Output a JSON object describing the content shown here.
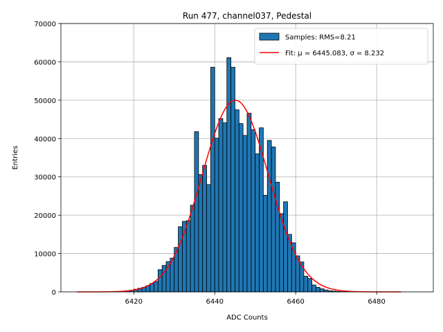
{
  "chart_data": {
    "type": "bar",
    "title": "Run 477, channel037, Pedestal",
    "xlabel": "ADC Counts",
    "ylabel": "Entries",
    "xlim": [
      6402,
      6494
    ],
    "ylim": [
      0,
      70000
    ],
    "xticks": [
      6420,
      6440,
      6460,
      6480
    ],
    "yticks": [
      0,
      10000,
      20000,
      30000,
      40000,
      50000,
      60000,
      70000
    ],
    "grid": true,
    "legend_position": "top-right",
    "bin_width": 1,
    "histogram": {
      "name": "Samples: RMS=8.21",
      "color": "#1f77b4",
      "bins": [
        6418,
        6419,
        6420,
        6421,
        6422,
        6423,
        6424,
        6425,
        6426,
        6427,
        6428,
        6429,
        6430,
        6431,
        6432,
        6433,
        6434,
        6435,
        6436,
        6437,
        6438,
        6439,
        6440,
        6441,
        6442,
        6443,
        6444,
        6445,
        6446,
        6447,
        6448,
        6449,
        6450,
        6451,
        6452,
        6453,
        6454,
        6455,
        6456,
        6457,
        6458,
        6459,
        6460,
        6461,
        6462,
        6463,
        6464,
        6465,
        6466,
        6467,
        6468,
        6469,
        6470,
        6471,
        6472
      ],
      "values": [
        300,
        450,
        700,
        950,
        1200,
        1600,
        2200,
        2700,
        5800,
        6900,
        7900,
        8800,
        11600,
        17000,
        18400,
        18600,
        22600,
        41800,
        30600,
        33000,
        28000,
        58600,
        40100,
        45200,
        44100,
        61100,
        58600,
        47500,
        43900,
        40800,
        46600,
        42300,
        36000,
        42800,
        25200,
        39500,
        37800,
        28600,
        20400,
        23500,
        15000,
        12800,
        9400,
        7800,
        4100,
        3500,
        1800,
        1200,
        800,
        500,
        300,
        200,
        120,
        60,
        30
      ]
    },
    "fit": {
      "name_prefix": "Fit: ",
      "mu_label": "μ = 6445.083",
      "sigma_label": "σ = 8.232",
      "mu": 6445.083,
      "sigma": 8.232,
      "amplitude": 50000,
      "x_range": [
        6406,
        6486
      ],
      "color": "#ff0000"
    }
  }
}
